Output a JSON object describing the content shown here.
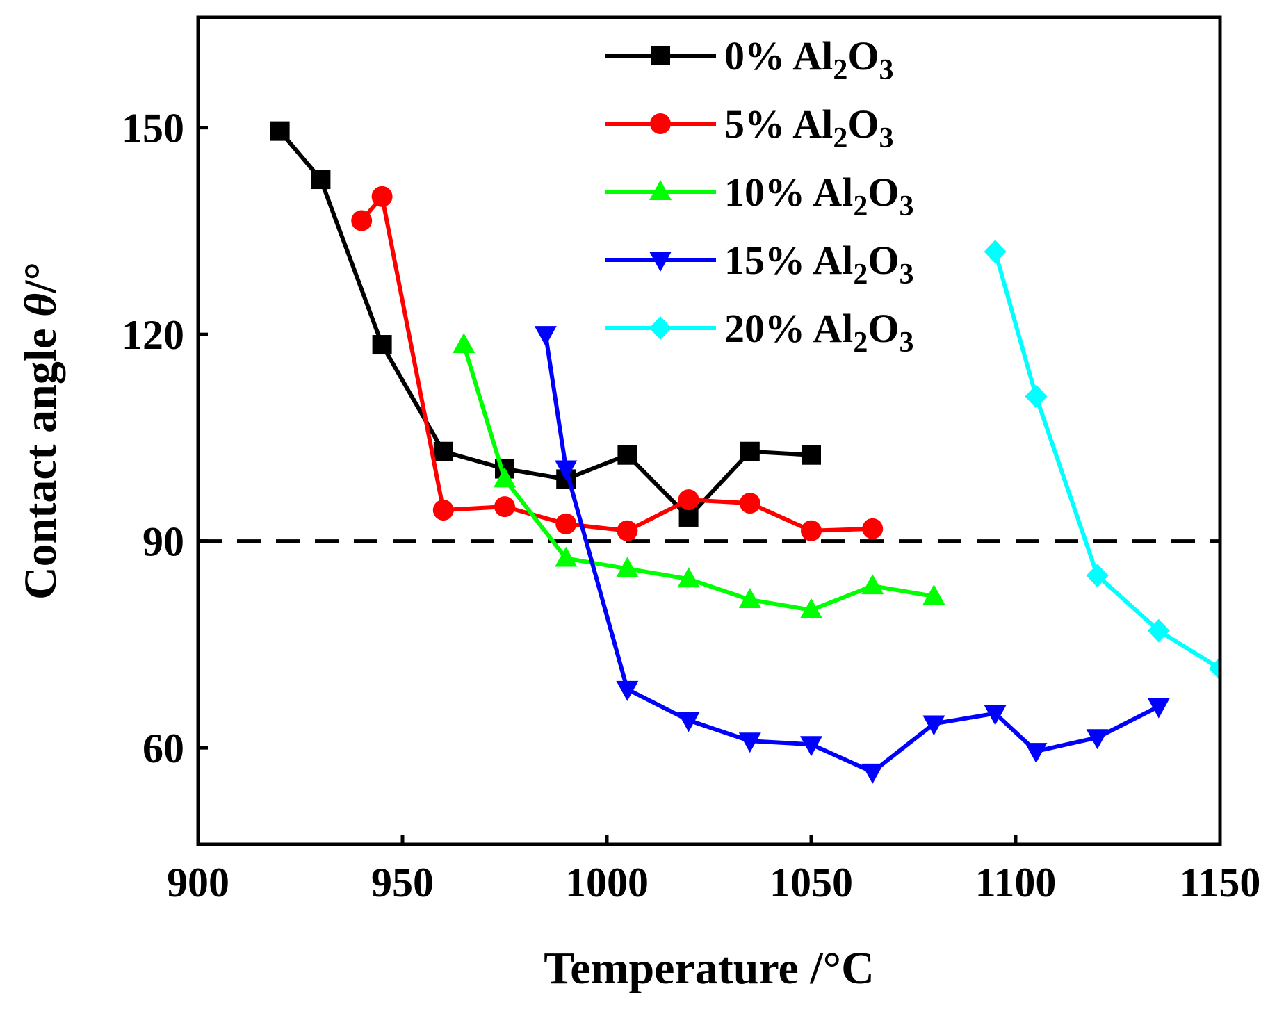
{
  "chart_data": {
    "type": "line",
    "xlabel": "Temperature /°C",
    "ylabel_text": "Contact angle ",
    "ylabel_symbol": "θ",
    "ylabel_unit": "/°",
    "xlim": [
      900,
      1150
    ],
    "ylim": [
      46,
      166
    ],
    "x_ticks": [
      900,
      950,
      1000,
      1050,
      1100,
      1150
    ],
    "y_ticks": [
      60,
      90,
      120,
      150
    ],
    "reference_line": {
      "y": 90,
      "style": "dashed",
      "color": "#000000"
    },
    "legend_position": "top-right",
    "grid": false,
    "series": [
      {
        "name_prefix": "0%  Al",
        "name_sub1": "2",
        "name_mid": "O",
        "name_sub2": "3",
        "color": "#000000",
        "marker": "square",
        "x": [
          920,
          930,
          945,
          960,
          975,
          990,
          1005,
          1020,
          1035,
          1050
        ],
        "y": [
          149.5,
          142.5,
          118.5,
          103,
          100.5,
          99,
          102.5,
          93.5,
          103,
          102.5
        ]
      },
      {
        "name_prefix": "5%  Al",
        "name_sub1": "2",
        "name_mid": "O",
        "name_sub2": "3",
        "color": "#ff0000",
        "marker": "circle",
        "x": [
          940,
          945,
          960,
          975,
          990,
          1005,
          1020,
          1035,
          1050,
          1065
        ],
        "y": [
          136.5,
          140,
          94.5,
          95,
          92.5,
          91.5,
          96,
          95.5,
          91.5,
          91.8
        ]
      },
      {
        "name_prefix": "10%  Al",
        "name_sub1": "2",
        "name_mid": "O",
        "name_sub2": "3",
        "color": "#00ff00",
        "marker": "triangle-up",
        "x": [
          965,
          975,
          990,
          1005,
          1020,
          1035,
          1050,
          1065,
          1080
        ],
        "y": [
          118.5,
          99,
          87.5,
          86,
          84.5,
          81.5,
          80,
          83.5,
          82
        ]
      },
      {
        "name_prefix": "15%  Al",
        "name_sub1": "2",
        "name_mid": "O",
        "name_sub2": "3",
        "color": "#0000ff",
        "marker": "triangle-down",
        "x": [
          985,
          990,
          1005,
          1020,
          1035,
          1050,
          1065,
          1080,
          1095,
          1105,
          1120,
          1135
        ],
        "y": [
          120,
          100.5,
          68.5,
          64,
          61,
          60.5,
          56.5,
          63.5,
          65,
          59.5,
          61.5,
          66
        ]
      },
      {
        "name_prefix": "20%  Al",
        "name_sub1": "2",
        "name_mid": "O",
        "name_sub2": "3",
        "color": "#00ffff",
        "marker": "diamond",
        "x": [
          1095,
          1105,
          1120,
          1135,
          1150
        ],
        "y": [
          132,
          111,
          85,
          77,
          71.5
        ]
      }
    ]
  }
}
